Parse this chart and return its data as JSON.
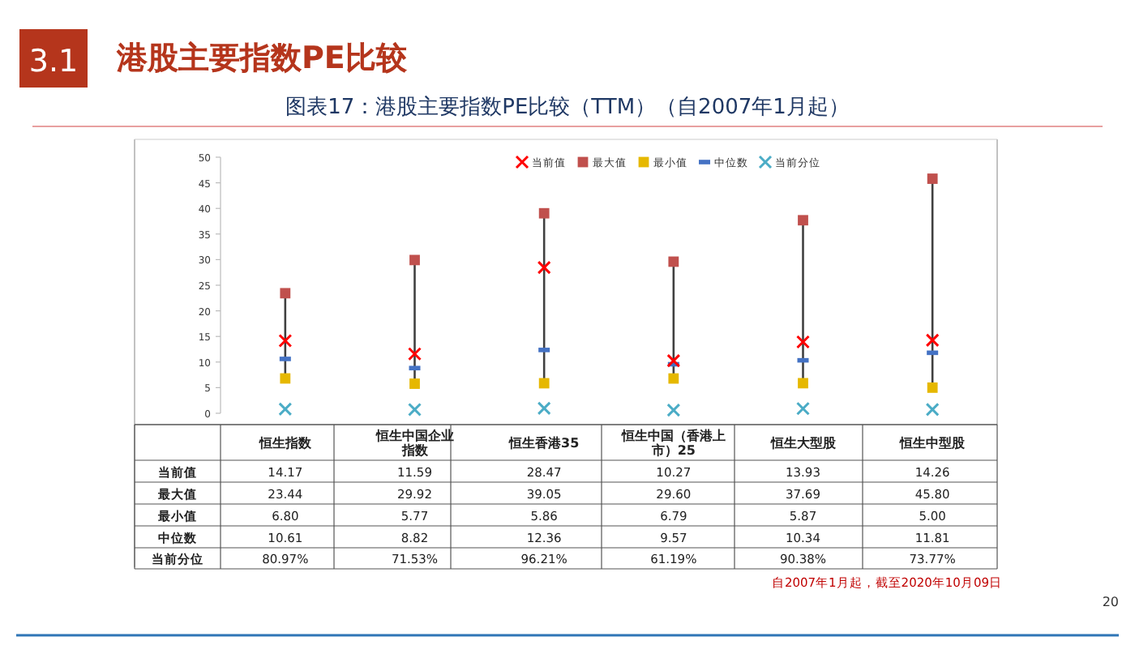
{
  "chart_data": {
    "type": "scatter",
    "title": "图表17：港股主要指数PE比较（TTM）（自2007年1月起）",
    "annotations": [
      "3.1",
      "港股主要指数PE比较",
      "自2007年1月起，截至2020年10月09日",
      "20"
    ],
    "categories": [
      "恒生指数",
      "恒生中国企业指数",
      "恒生香港35",
      "恒生中国（香港上市）25",
      "恒生大型股",
      "恒生中型股"
    ],
    "ylim": [
      0,
      50
    ],
    "yticks": [
      0,
      5,
      10,
      15,
      20,
      25,
      30,
      35,
      40,
      45,
      50
    ],
    "legend": "top right",
    "series": [
      {
        "name": "当前值",
        "color": "#ff0000",
        "marker": "cross",
        "values": [
          14.17,
          11.59,
          28.47,
          10.27,
          13.93,
          14.26
        ],
        "value_labels": [
          "14.17",
          "11.59",
          "28.47",
          "10.27",
          "13.93",
          "14.26"
        ]
      },
      {
        "name": "最大值",
        "color": "#c0504d",
        "marker": "square",
        "values": [
          23.44,
          29.92,
          39.05,
          29.6,
          37.69,
          45.8
        ],
        "value_labels": [
          "23.44",
          "29.92",
          "39.05",
          "29.60",
          "37.69",
          "45.80"
        ]
      },
      {
        "name": "最小值",
        "color": "#e6b800",
        "marker": "square",
        "values": [
          6.8,
          5.77,
          5.86,
          6.79,
          5.87,
          5.0
        ],
        "value_labels": [
          "6.80",
          "5.77",
          "5.86",
          "6.79",
          "5.87",
          "5.00"
        ]
      },
      {
        "name": "中位数",
        "color": "#4472c4",
        "values": [
          10.61,
          8.82,
          12.36,
          9.57,
          10.34,
          11.81
        ],
        "value_labels": [
          "10.61",
          "8.82",
          "12.36",
          "9.57",
          "10.34",
          "11.81"
        ]
      },
      {
        "name": "当前分位",
        "color": "#4bacc6",
        "marker": "cross",
        "values": [
          0.8097,
          0.7153,
          0.9621,
          0.6119,
          0.9038,
          0.7377
        ],
        "value_labels": [
          "80.97%",
          "71.53%",
          "96.21%",
          "61.19%",
          "90.38%",
          "73.77%"
        ]
      }
    ]
  }
}
